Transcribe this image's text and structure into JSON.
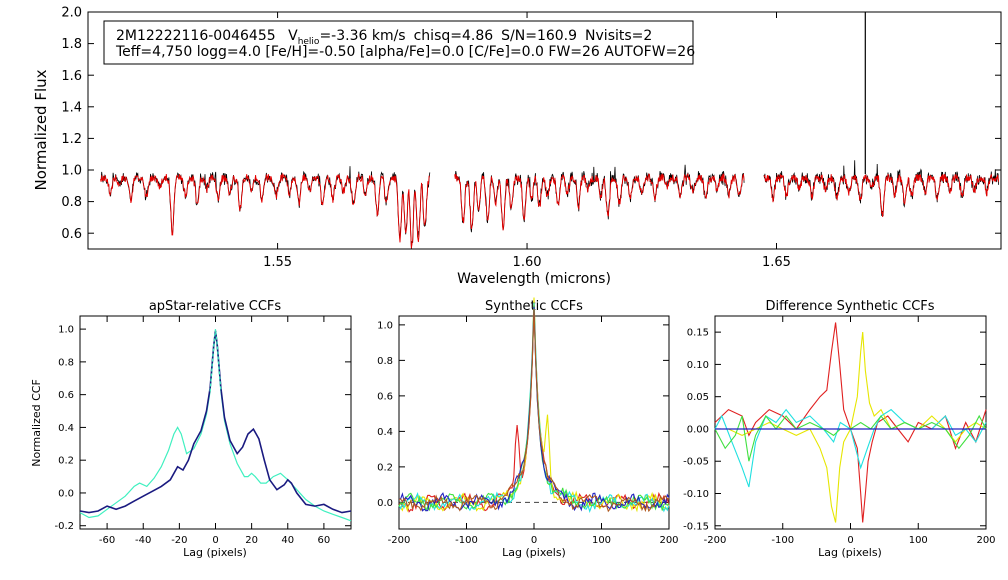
{
  "header": {
    "star_id": "2M12222116-0046455",
    "vhelio_v": "V",
    "vhelio_sub": "helio",
    "vhelio_rest": "=-3.36 km/s",
    "chisq": "chisq=4.86",
    "snr": "S/N=160.9",
    "nvisits": "Nvisits=2",
    "params_line": "Teff=4,750 logg=4.0 [Fe/H]=-0.50 [alpha/Fe]=0.0 [C/Fe]=0.0 FW=26 AUTOFW=26"
  },
  "colors": {
    "observed": "#000000",
    "model": "#e60000",
    "ccf_green": "#40f0c0",
    "ccf_navy": "#1a1a80",
    "syn_red": "#e02020",
    "syn_yellow": "#e6e600",
    "syn_cyan": "#20e0e0",
    "syn_green": "#40e040",
    "syn_blue": "#2020c0",
    "syn_brown": "#b05a20",
    "zero_line": "#404040"
  },
  "chart_data": [
    {
      "id": "spectrum",
      "type": "line",
      "title": "",
      "xlabel": "Wavelength (microns)",
      "ylabel": "Normalized Flux",
      "xlim": [
        1.512,
        1.695
      ],
      "ylim": [
        0.5,
        2.0
      ],
      "xticks": [
        1.55,
        1.6,
        1.65
      ],
      "xtick_labels": [
        "1.55",
        "1.60",
        "1.65"
      ],
      "yticks": [
        0.6,
        0.8,
        1.0,
        1.2,
        1.4,
        1.6,
        1.8,
        2.0
      ],
      "ytick_labels": [
        "0.6",
        "0.8",
        "1.0",
        "1.2",
        "1.4",
        "1.6",
        "1.8",
        "2.0"
      ],
      "chips": [
        [
          1.5145,
          1.5805
        ],
        [
          1.5855,
          1.6435
        ],
        [
          1.6475,
          1.6945
        ]
      ],
      "continuum": 0.975,
      "absorption_lines": [
        [
          1.5165,
          0.88
        ],
        [
          1.5182,
          0.92
        ],
        [
          1.5206,
          0.84
        ],
        [
          1.5237,
          0.86
        ],
        [
          1.5263,
          0.91
        ],
        [
          1.5289,
          0.63
        ],
        [
          1.5316,
          0.86
        ],
        [
          1.5339,
          0.8
        ],
        [
          1.5358,
          0.9
        ],
        [
          1.5381,
          0.84
        ],
        [
          1.5404,
          0.88
        ],
        [
          1.5425,
          0.78
        ],
        [
          1.5448,
          0.89
        ],
        [
          1.5469,
          0.83
        ],
        [
          1.5497,
          0.86
        ],
        [
          1.5524,
          0.88
        ],
        [
          1.5543,
          0.82
        ],
        [
          1.5565,
          0.9
        ],
        [
          1.559,
          0.79
        ],
        [
          1.5611,
          0.84
        ],
        [
          1.5632,
          0.89
        ],
        [
          1.5652,
          0.8
        ],
        [
          1.5676,
          0.86
        ],
        [
          1.57,
          0.74
        ],
        [
          1.5718,
          0.82
        ],
        [
          1.5745,
          0.58
        ],
        [
          1.5757,
          0.62
        ],
        [
          1.5769,
          0.53
        ],
        [
          1.5782,
          0.56
        ],
        [
          1.5795,
          0.67
        ],
        [
          1.5872,
          0.7
        ],
        [
          1.5889,
          0.64
        ],
        [
          1.5903,
          0.78
        ],
        [
          1.5921,
          0.7
        ],
        [
          1.5937,
          0.82
        ],
        [
          1.5952,
          0.66
        ],
        [
          1.5968,
          0.78
        ],
        [
          1.5994,
          0.72
        ],
        [
          1.6009,
          0.84
        ],
        [
          1.6025,
          0.79
        ],
        [
          1.6041,
          0.86
        ],
        [
          1.6062,
          0.81
        ],
        [
          1.6081,
          0.88
        ],
        [
          1.6103,
          0.8
        ],
        [
          1.6122,
          0.9
        ],
        [
          1.6148,
          0.86
        ],
        [
          1.6162,
          0.74
        ],
        [
          1.6185,
          0.82
        ],
        [
          1.6207,
          0.86
        ],
        [
          1.623,
          0.88
        ],
        [
          1.6256,
          0.84
        ],
        [
          1.6281,
          0.91
        ],
        [
          1.6307,
          0.86
        ],
        [
          1.6332,
          0.88
        ],
        [
          1.6358,
          0.84
        ],
        [
          1.6381,
          0.9
        ],
        [
          1.6404,
          0.86
        ],
        [
          1.6425,
          0.88
        ],
        [
          1.6493,
          0.84
        ],
        [
          1.652,
          0.86
        ],
        [
          1.6546,
          0.91
        ],
        [
          1.6571,
          0.86
        ],
        [
          1.6598,
          0.9
        ],
        [
          1.6621,
          0.84
        ],
        [
          1.6645,
          0.88
        ],
        [
          1.6668,
          0.83
        ],
        [
          1.669,
          0.9
        ],
        [
          1.6712,
          0.74
        ],
        [
          1.6737,
          0.86
        ],
        [
          1.6757,
          0.82
        ],
        [
          1.6771,
          0.86
        ],
        [
          1.6798,
          0.88
        ],
        [
          1.6822,
          0.84
        ],
        [
          1.6848,
          0.89
        ],
        [
          1.6872,
          0.86
        ],
        [
          1.6897,
          0.9
        ],
        [
          1.6922,
          0.88
        ]
      ],
      "spikes": [
        [
          1.6678,
          2.0
        ]
      ]
    },
    {
      "id": "apstar-ccf",
      "type": "line",
      "title": "apStar-relative CCFs",
      "xlabel": "Lag (pixels)",
      "ylabel": "Normalized CCF",
      "xlim": [
        -75,
        75
      ],
      "ylim": [
        -0.22,
        1.08
      ],
      "xticks": [
        -60,
        -40,
        -20,
        0,
        20,
        40,
        60
      ],
      "xtick_labels": [
        "-60",
        "-40",
        "-20",
        "0",
        "20",
        "40",
        "60"
      ],
      "yticks": [
        -0.2,
        0.0,
        0.2,
        0.4,
        0.6,
        0.8,
        1.0
      ],
      "ytick_labels": [
        "-0.2",
        "0.0",
        "0.2",
        "0.4",
        "0.6",
        "0.8",
        "1.0"
      ],
      "series": [
        {
          "name": "green",
          "x": [
            -75,
            -70,
            -65,
            -60,
            -55,
            -50,
            -45,
            -42,
            -38,
            -34,
            -30,
            -26,
            -23,
            -21,
            -19,
            -16,
            -12,
            -8,
            -5,
            -3,
            -1,
            0,
            1,
            3,
            5,
            8,
            12,
            16,
            18,
            20,
            22,
            25,
            28,
            32,
            36,
            40,
            45,
            50,
            55,
            60,
            65,
            70,
            75
          ],
          "values": [
            -0.12,
            -0.15,
            -0.14,
            -0.1,
            -0.06,
            -0.02,
            0.04,
            0.06,
            0.04,
            0.09,
            0.16,
            0.26,
            0.36,
            0.4,
            0.36,
            0.24,
            0.27,
            0.36,
            0.48,
            0.62,
            0.88,
            0.99,
            0.88,
            0.62,
            0.44,
            0.3,
            0.18,
            0.1,
            0.1,
            0.12,
            0.1,
            0.06,
            0.06,
            0.1,
            0.12,
            0.08,
            0.02,
            -0.04,
            -0.08,
            -0.11,
            -0.13,
            -0.15,
            -0.17
          ]
        },
        {
          "name": "navy",
          "x": [
            -75,
            -70,
            -65,
            -60,
            -55,
            -50,
            -45,
            -40,
            -35,
            -30,
            -25,
            -21,
            -18,
            -15,
            -12,
            -8,
            -5,
            -3,
            -1,
            0,
            1,
            3,
            5,
            8,
            12,
            15,
            18,
            21,
            24,
            27,
            30,
            34,
            38,
            40,
            42,
            45,
            50,
            55,
            60,
            65,
            70,
            75
          ],
          "values": [
            -0.11,
            -0.12,
            -0.11,
            -0.08,
            -0.1,
            -0.08,
            -0.05,
            -0.02,
            0.01,
            0.04,
            0.08,
            0.16,
            0.14,
            0.2,
            0.3,
            0.38,
            0.5,
            0.64,
            0.9,
            0.99,
            0.9,
            0.64,
            0.46,
            0.32,
            0.24,
            0.28,
            0.36,
            0.39,
            0.33,
            0.2,
            0.08,
            0.02,
            0.05,
            0.08,
            0.06,
            0.0,
            -0.07,
            -0.08,
            -0.07,
            -0.1,
            -0.12,
            -0.11
          ]
        }
      ],
      "dashed": {
        "name": "teal-dashed",
        "x": [
          -3,
          -1,
          0,
          1,
          3
        ],
        "values": [
          0.62,
          0.9,
          1.0,
          0.9,
          0.62
        ]
      }
    },
    {
      "id": "synthetic-ccf",
      "type": "line",
      "title": "Synthetic CCFs",
      "xlabel": "Lag (pixels)",
      "ylabel": "",
      "xlim": [
        -200,
        200
      ],
      "ylim": [
        -0.15,
        1.05
      ],
      "xticks": [
        -200,
        -100,
        0,
        100,
        200
      ],
      "xtick_labels": [
        "-200",
        "-100",
        "0",
        "100",
        "200"
      ],
      "yticks": [
        0.0,
        0.2,
        0.4,
        0.6,
        0.8,
        1.0
      ],
      "ytick_labels": [
        "0.0",
        "0.2",
        "0.4",
        "0.6",
        "0.8",
        "1.0"
      ],
      "peak": 1.0,
      "baseline": 0.0,
      "series": [
        {
          "name": "red",
          "bump": [
            -25,
            0.36
          ]
        },
        {
          "name": "yellow",
          "bump": [
            20,
            0.33
          ]
        },
        {
          "name": "cyan",
          "bump": [
            0,
            0.0
          ]
        },
        {
          "name": "green",
          "bump": [
            0,
            0.0
          ]
        },
        {
          "name": "blue",
          "bump": [
            0,
            0.0
          ]
        },
        {
          "name": "brown",
          "bump": [
            0,
            0.0
          ]
        }
      ]
    },
    {
      "id": "difference-ccf",
      "type": "line",
      "title": "Difference Synthetic CCFs",
      "xlabel": "Lag (pixels)",
      "ylabel": "",
      "xlim": [
        -200,
        200
      ],
      "ylim": [
        -0.155,
        0.175
      ],
      "xticks": [
        -200,
        -100,
        0,
        100,
        200
      ],
      "xtick_labels": [
        "-200",
        "-100",
        "0",
        "100",
        "200"
      ],
      "yticks": [
        -0.15,
        -0.1,
        -0.05,
        0.0,
        0.05,
        0.1,
        0.15
      ],
      "ytick_labels": [
        "-0.15",
        "-0.10",
        "-0.05",
        "0.00",
        "0.05",
        "0.10",
        "0.15"
      ],
      "series": [
        {
          "name": "red",
          "x": [
            -200,
            -180,
            -160,
            -150,
            -140,
            -120,
            -100,
            -80,
            -60,
            -45,
            -35,
            -28,
            -22,
            -16,
            -10,
            0,
            10,
            15,
            18,
            22,
            26,
            32,
            40,
            55,
            70,
            85,
            100,
            120,
            140,
            155,
            170,
            185,
            200
          ],
          "values": [
            0.01,
            0.03,
            0.02,
            -0.01,
            0.01,
            0.03,
            0.02,
            0.0,
            0.03,
            0.05,
            0.06,
            0.12,
            0.165,
            0.1,
            0.03,
            0.0,
            -0.03,
            -0.1,
            -0.145,
            -0.1,
            -0.05,
            -0.02,
            0.01,
            0.02,
            0.0,
            -0.02,
            0.01,
            0.0,
            0.02,
            -0.03,
            0.01,
            -0.02,
            0.03
          ]
        },
        {
          "name": "yellow",
          "x": [
            -200,
            -180,
            -160,
            -140,
            -120,
            -100,
            -80,
            -60,
            -45,
            -35,
            -28,
            -22,
            -16,
            -10,
            0,
            10,
            15,
            18,
            22,
            28,
            35,
            45,
            60,
            80,
            100,
            120,
            140,
            155,
            170,
            185,
            200
          ],
          "values": [
            0.0,
            0.0,
            -0.01,
            0.0,
            0.01,
            0.0,
            -0.01,
            0.0,
            -0.03,
            -0.06,
            -0.12,
            -0.145,
            -0.06,
            -0.02,
            0.0,
            0.05,
            0.12,
            0.15,
            0.09,
            0.04,
            0.02,
            0.03,
            0.0,
            0.01,
            0.0,
            0.02,
            0.0,
            -0.02,
            0.0,
            0.01,
            0.0
          ]
        },
        {
          "name": "cyan",
          "x": [
            -200,
            -190,
            -175,
            -160,
            -150,
            -140,
            -125,
            -110,
            -95,
            -80,
            -60,
            -40,
            -25,
            -15,
            0,
            15,
            25,
            35,
            45,
            60,
            80,
            100,
            120,
            140,
            155,
            170,
            185,
            200
          ],
          "values": [
            0.0,
            0.02,
            -0.02,
            -0.06,
            -0.09,
            -0.02,
            0.02,
            0.01,
            0.03,
            0.01,
            0.02,
            0.0,
            -0.02,
            0.01,
            0.0,
            -0.06,
            -0.03,
            0.0,
            0.02,
            0.03,
            0.01,
            0.0,
            0.0,
            0.02,
            -0.01,
            0.0,
            -0.02,
            0.01
          ]
        },
        {
          "name": "green",
          "x": [
            -200,
            -185,
            -170,
            -160,
            -150,
            -140,
            -125,
            -110,
            -95,
            -80,
            -60,
            -40,
            -25,
            -15,
            0,
            15,
            30,
            45,
            60,
            80,
            100,
            120,
            140,
            160,
            175,
            190,
            200
          ],
          "values": [
            0.0,
            -0.03,
            -0.01,
            0.02,
            -0.05,
            -0.01,
            0.02,
            0.0,
            0.02,
            0.0,
            0.01,
            0.0,
            -0.01,
            0.0,
            0.0,
            0.01,
            0.0,
            0.02,
            0.0,
            0.01,
            0.0,
            0.01,
            0.0,
            -0.03,
            -0.01,
            0.02,
            0.0
          ]
        },
        {
          "name": "blue-zero",
          "x": [
            -200,
            200
          ],
          "values": [
            0.0,
            0.0
          ]
        }
      ]
    }
  ]
}
